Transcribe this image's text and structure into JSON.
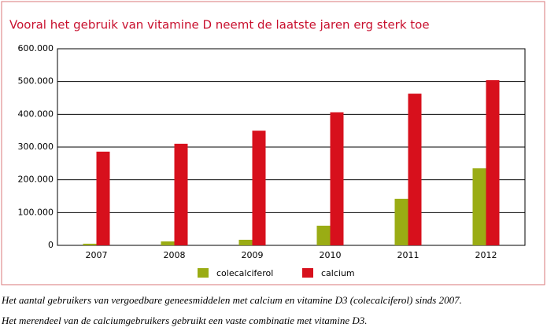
{
  "chart_data": {
    "type": "bar",
    "title": "Vooral het gebruik van vitamine D neemt de laatste jaren erg sterk toe",
    "categories": [
      "2007",
      "2008",
      "2009",
      "2010",
      "2011",
      "2012"
    ],
    "series": [
      {
        "name": "colecalciferol",
        "color": "#9aac14",
        "values": [
          5000,
          12000,
          17000,
          60000,
          142000,
          235000
        ]
      },
      {
        "name": "calcium",
        "color": "#d7101c",
        "values": [
          286000,
          310000,
          350000,
          406000,
          463000,
          504000
        ]
      }
    ],
    "ylim": [
      0,
      600000
    ],
    "yticks": [
      0,
      {
        "value": 100000,
        "label": "100.000"
      },
      {
        "value": 200000,
        "label": "200.000"
      },
      {
        "value": 300000,
        "label": "300.000"
      },
      {
        "value": 400000,
        "label": "400.000"
      },
      {
        "value": 500000,
        "label": "500.000"
      },
      {
        "value": 600000,
        "label": "600.000"
      }
    ],
    "grid": true,
    "legend": "bottom",
    "caption": [
      "Het aantal gebruikers van vergoedbare geneesmiddelen met calcium en vitamine D3 (colecalciferol) sinds 2007.",
      "Het merendeel van de calciumgebruikers gebruikt een vaste combinatie met vitamine D3."
    ]
  }
}
